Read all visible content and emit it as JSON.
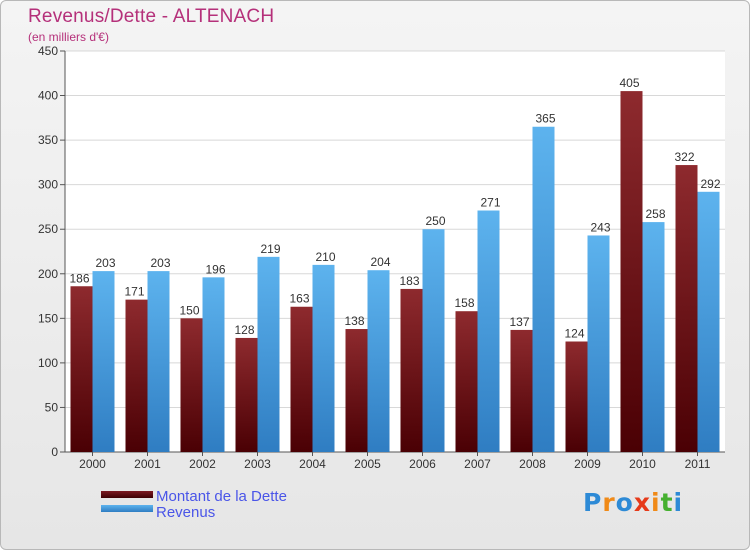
{
  "header": {
    "title": "Revenus/Dette - ALTENACH",
    "subtitle": "(en milliers d'€)"
  },
  "legend": {
    "items": [
      {
        "label": "Montant de la Dette",
        "color": "#6b0f14"
      },
      {
        "label": "Revenus",
        "color": "#4a9fe0"
      }
    ]
  },
  "logo": {
    "text": "Proxiti",
    "letter_colors": [
      "#2d8ad6",
      "#f08a18",
      "#2d8ad6",
      "#e63a1a",
      "#f08a18",
      "#46b030",
      "#2d8ad6"
    ]
  },
  "chart_data": {
    "type": "bar",
    "categories": [
      "2000",
      "2001",
      "2002",
      "2003",
      "2004",
      "2005",
      "2006",
      "2007",
      "2008",
      "2009",
      "2010",
      "2011"
    ],
    "series": [
      {
        "name": "Montant de la Dette",
        "color": "#7d1a22",
        "values": [
          186,
          171,
          150,
          128,
          163,
          138,
          183,
          158,
          137,
          124,
          405,
          322
        ]
      },
      {
        "name": "Revenus",
        "color": "#4da6e8",
        "values": [
          203,
          203,
          196,
          219,
          210,
          204,
          250,
          271,
          365,
          243,
          258,
          292
        ]
      }
    ],
    "ylim": [
      0,
      450
    ],
    "yticks": [
      0,
      50,
      100,
      150,
      200,
      250,
      300,
      350,
      400,
      450
    ],
    "grid": true,
    "legend_position": "bottom-left"
  }
}
